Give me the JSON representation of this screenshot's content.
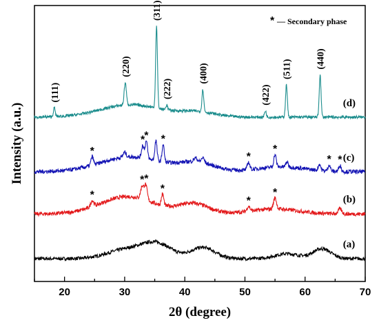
{
  "chart_data": {
    "type": "line",
    "title": "",
    "xlabel": "2θ (degree)",
    "ylabel": "Intensity (a.u.)",
    "xlim": [
      15,
      70
    ],
    "x_ticks": [
      20,
      30,
      40,
      50,
      60,
      70
    ],
    "y_ticks_shown": false,
    "grid": false,
    "legend": {
      "symbol": "*",
      "text": "— Secondary phase",
      "placement": "top-right"
    },
    "peak_labels": [
      {
        "label": "(111)",
        "x": 18.3
      },
      {
        "label": "(220)",
        "x": 30.1
      },
      {
        "label": "(311)",
        "x": 35.3
      },
      {
        "label": "(222)",
        "x": 37.0
      },
      {
        "label": "(400)",
        "x": 43.0
      },
      {
        "label": "(422)",
        "x": 53.4
      },
      {
        "label": "(511)",
        "x": 56.9
      },
      {
        "label": "(440)",
        "x": 62.5
      }
    ],
    "series": [
      {
        "name": "(a)",
        "color": "#000000",
        "noise": 0.007,
        "base": 0.0,
        "humps": [
          {
            "c": 30,
            "h": 0.035,
            "w": 3
          },
          {
            "c": 35.3,
            "h": 0.06,
            "w": 2.5
          },
          {
            "c": 43,
            "h": 0.045,
            "w": 2
          },
          {
            "c": 57,
            "h": 0.02,
            "w": 2
          },
          {
            "c": 62.8,
            "h": 0.04,
            "w": 1.5
          }
        ],
        "peaks": []
      },
      {
        "name": "(b)",
        "color": "#e31a1c",
        "noise": 0.008,
        "base": 0.18,
        "humps": [
          {
            "c": 30.5,
            "h": 0.07,
            "w": 4.5
          },
          {
            "c": 41.5,
            "h": 0.04,
            "w": 2.5
          },
          {
            "c": 55,
            "h": 0.02,
            "w": 4
          }
        ],
        "peaks": [
          {
            "c": 24.6,
            "h": 0.025,
            "w": 0.25
          },
          {
            "c": 32.9,
            "h": 0.05,
            "w": 0.25
          },
          {
            "c": 33.5,
            "h": 0.06,
            "w": 0.25
          },
          {
            "c": 36.3,
            "h": 0.045,
            "w": 0.2
          },
          {
            "c": 50.6,
            "h": 0.02,
            "w": 0.25
          },
          {
            "c": 55.0,
            "h": 0.045,
            "w": 0.25
          },
          {
            "c": 65.8,
            "h": 0.02,
            "w": 0.3
          }
        ]
      },
      {
        "name": "(c)",
        "color": "#1414b4",
        "noise": 0.008,
        "base": 0.35,
        "humps": [
          {
            "c": 31,
            "h": 0.06,
            "w": 5
          },
          {
            "c": 42,
            "h": 0.035,
            "w": 3
          },
          {
            "c": 56,
            "h": 0.02,
            "w": 4
          }
        ],
        "peaks": [
          {
            "c": 24.6,
            "h": 0.035,
            "w": 0.2
          },
          {
            "c": 30.0,
            "h": 0.02,
            "w": 0.25
          },
          {
            "c": 33.0,
            "h": 0.05,
            "w": 0.2
          },
          {
            "c": 33.6,
            "h": 0.07,
            "w": 0.2
          },
          {
            "c": 35.2,
            "h": 0.08,
            "w": 0.18
          },
          {
            "c": 36.4,
            "h": 0.07,
            "w": 0.18
          },
          {
            "c": 41.8,
            "h": 0.015,
            "w": 0.3
          },
          {
            "c": 43.0,
            "h": 0.02,
            "w": 0.25
          },
          {
            "c": 50.6,
            "h": 0.03,
            "w": 0.2
          },
          {
            "c": 55.0,
            "h": 0.05,
            "w": 0.2
          },
          {
            "c": 57.0,
            "h": 0.02,
            "w": 0.2
          },
          {
            "c": 62.4,
            "h": 0.025,
            "w": 0.2
          },
          {
            "c": 64.0,
            "h": 0.025,
            "w": 0.2
          },
          {
            "c": 65.8,
            "h": 0.025,
            "w": 0.2
          }
        ]
      },
      {
        "name": "(d)",
        "color": "#1a8c8c",
        "noise": 0.006,
        "base": 0.57,
        "humps": [
          {
            "c": 31,
            "h": 0.05,
            "w": 5
          },
          {
            "c": 42,
            "h": 0.02,
            "w": 3
          }
        ],
        "peaks": [
          {
            "c": 18.3,
            "h": 0.035,
            "w": 0.15
          },
          {
            "c": 30.1,
            "h": 0.09,
            "w": 0.18
          },
          {
            "c": 35.3,
            "h": 0.33,
            "w": 0.15
          },
          {
            "c": 37.0,
            "h": 0.02,
            "w": 0.15
          },
          {
            "c": 43.0,
            "h": 0.09,
            "w": 0.15
          },
          {
            "c": 53.4,
            "h": 0.025,
            "w": 0.15
          },
          {
            "c": 56.9,
            "h": 0.13,
            "w": 0.15
          },
          {
            "c": 62.5,
            "h": 0.17,
            "w": 0.15
          }
        ]
      }
    ],
    "secondary_markers": [
      {
        "series": "(b)",
        "x": [
          24.6,
          32.9,
          33.6,
          36.3,
          50.6,
          55.0
        ]
      },
      {
        "series": "(c)",
        "x": [
          24.6,
          33.0,
          33.6,
          36.4,
          50.6,
          55.0,
          64.0,
          65.8
        ]
      }
    ]
  }
}
